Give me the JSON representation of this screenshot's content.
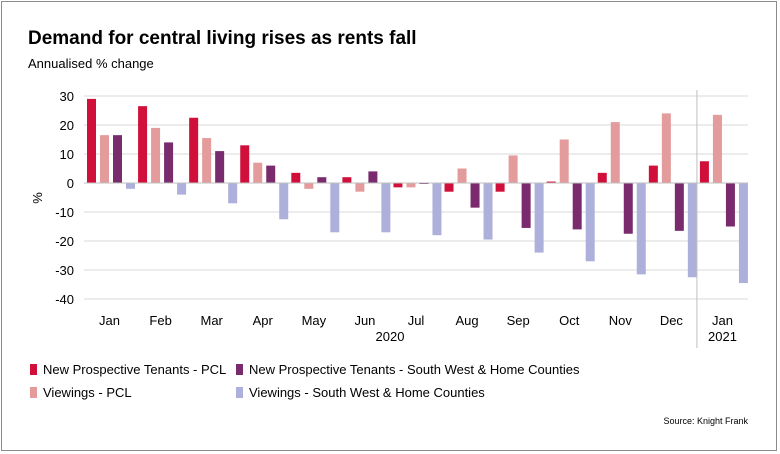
{
  "chart_data": {
    "type": "bar",
    "title": "Demand for central living rises as rents fall",
    "subtitle": "Annualised % change",
    "ylabel": "%",
    "ylim": [
      -40,
      30
    ],
    "yticks": [
      30,
      20,
      10,
      0,
      -10,
      -20,
      -30,
      -40
    ],
    "grid": true,
    "categories": [
      "Jan",
      "Feb",
      "Mar",
      "Apr",
      "May",
      "Jun",
      "Jul",
      "Aug",
      "Sep",
      "Oct",
      "Nov",
      "Dec",
      "Jan"
    ],
    "year_labels": [
      "2020",
      "2021"
    ],
    "series": [
      {
        "name": "New Prospective Tenants - PCL",
        "color": "#d0103a",
        "values": [
          29,
          26.5,
          22.5,
          13,
          3.5,
          2,
          -1.5,
          -3,
          -3,
          0.5,
          3.5,
          6,
          7.5
        ]
      },
      {
        "name": "Viewings - PCL",
        "color": "#e39b9b",
        "values": [
          16.5,
          19,
          15.5,
          7,
          -2,
          -3,
          -1.5,
          5,
          9.5,
          15,
          21,
          24,
          23.5
        ]
      },
      {
        "name": "New Prospective Tenants - South West & Home Counties",
        "color": "#7a2b6e",
        "values": [
          16.5,
          14,
          11,
          6,
          2,
          4,
          0,
          -8.5,
          -15.5,
          -16,
          -17.5,
          -16.5,
          -15
        ]
      },
      {
        "name": "Viewings - South West & Home Counties",
        "color": "#aeb0dc",
        "values": [
          -2,
          -4,
          -7,
          -12.5,
          -17,
          -17,
          -18,
          -19.5,
          -24,
          -27,
          -31.5,
          -32.5,
          -34.5
        ]
      }
    ],
    "legend_placement": "bottom"
  },
  "source": "Source: Knight Frank"
}
